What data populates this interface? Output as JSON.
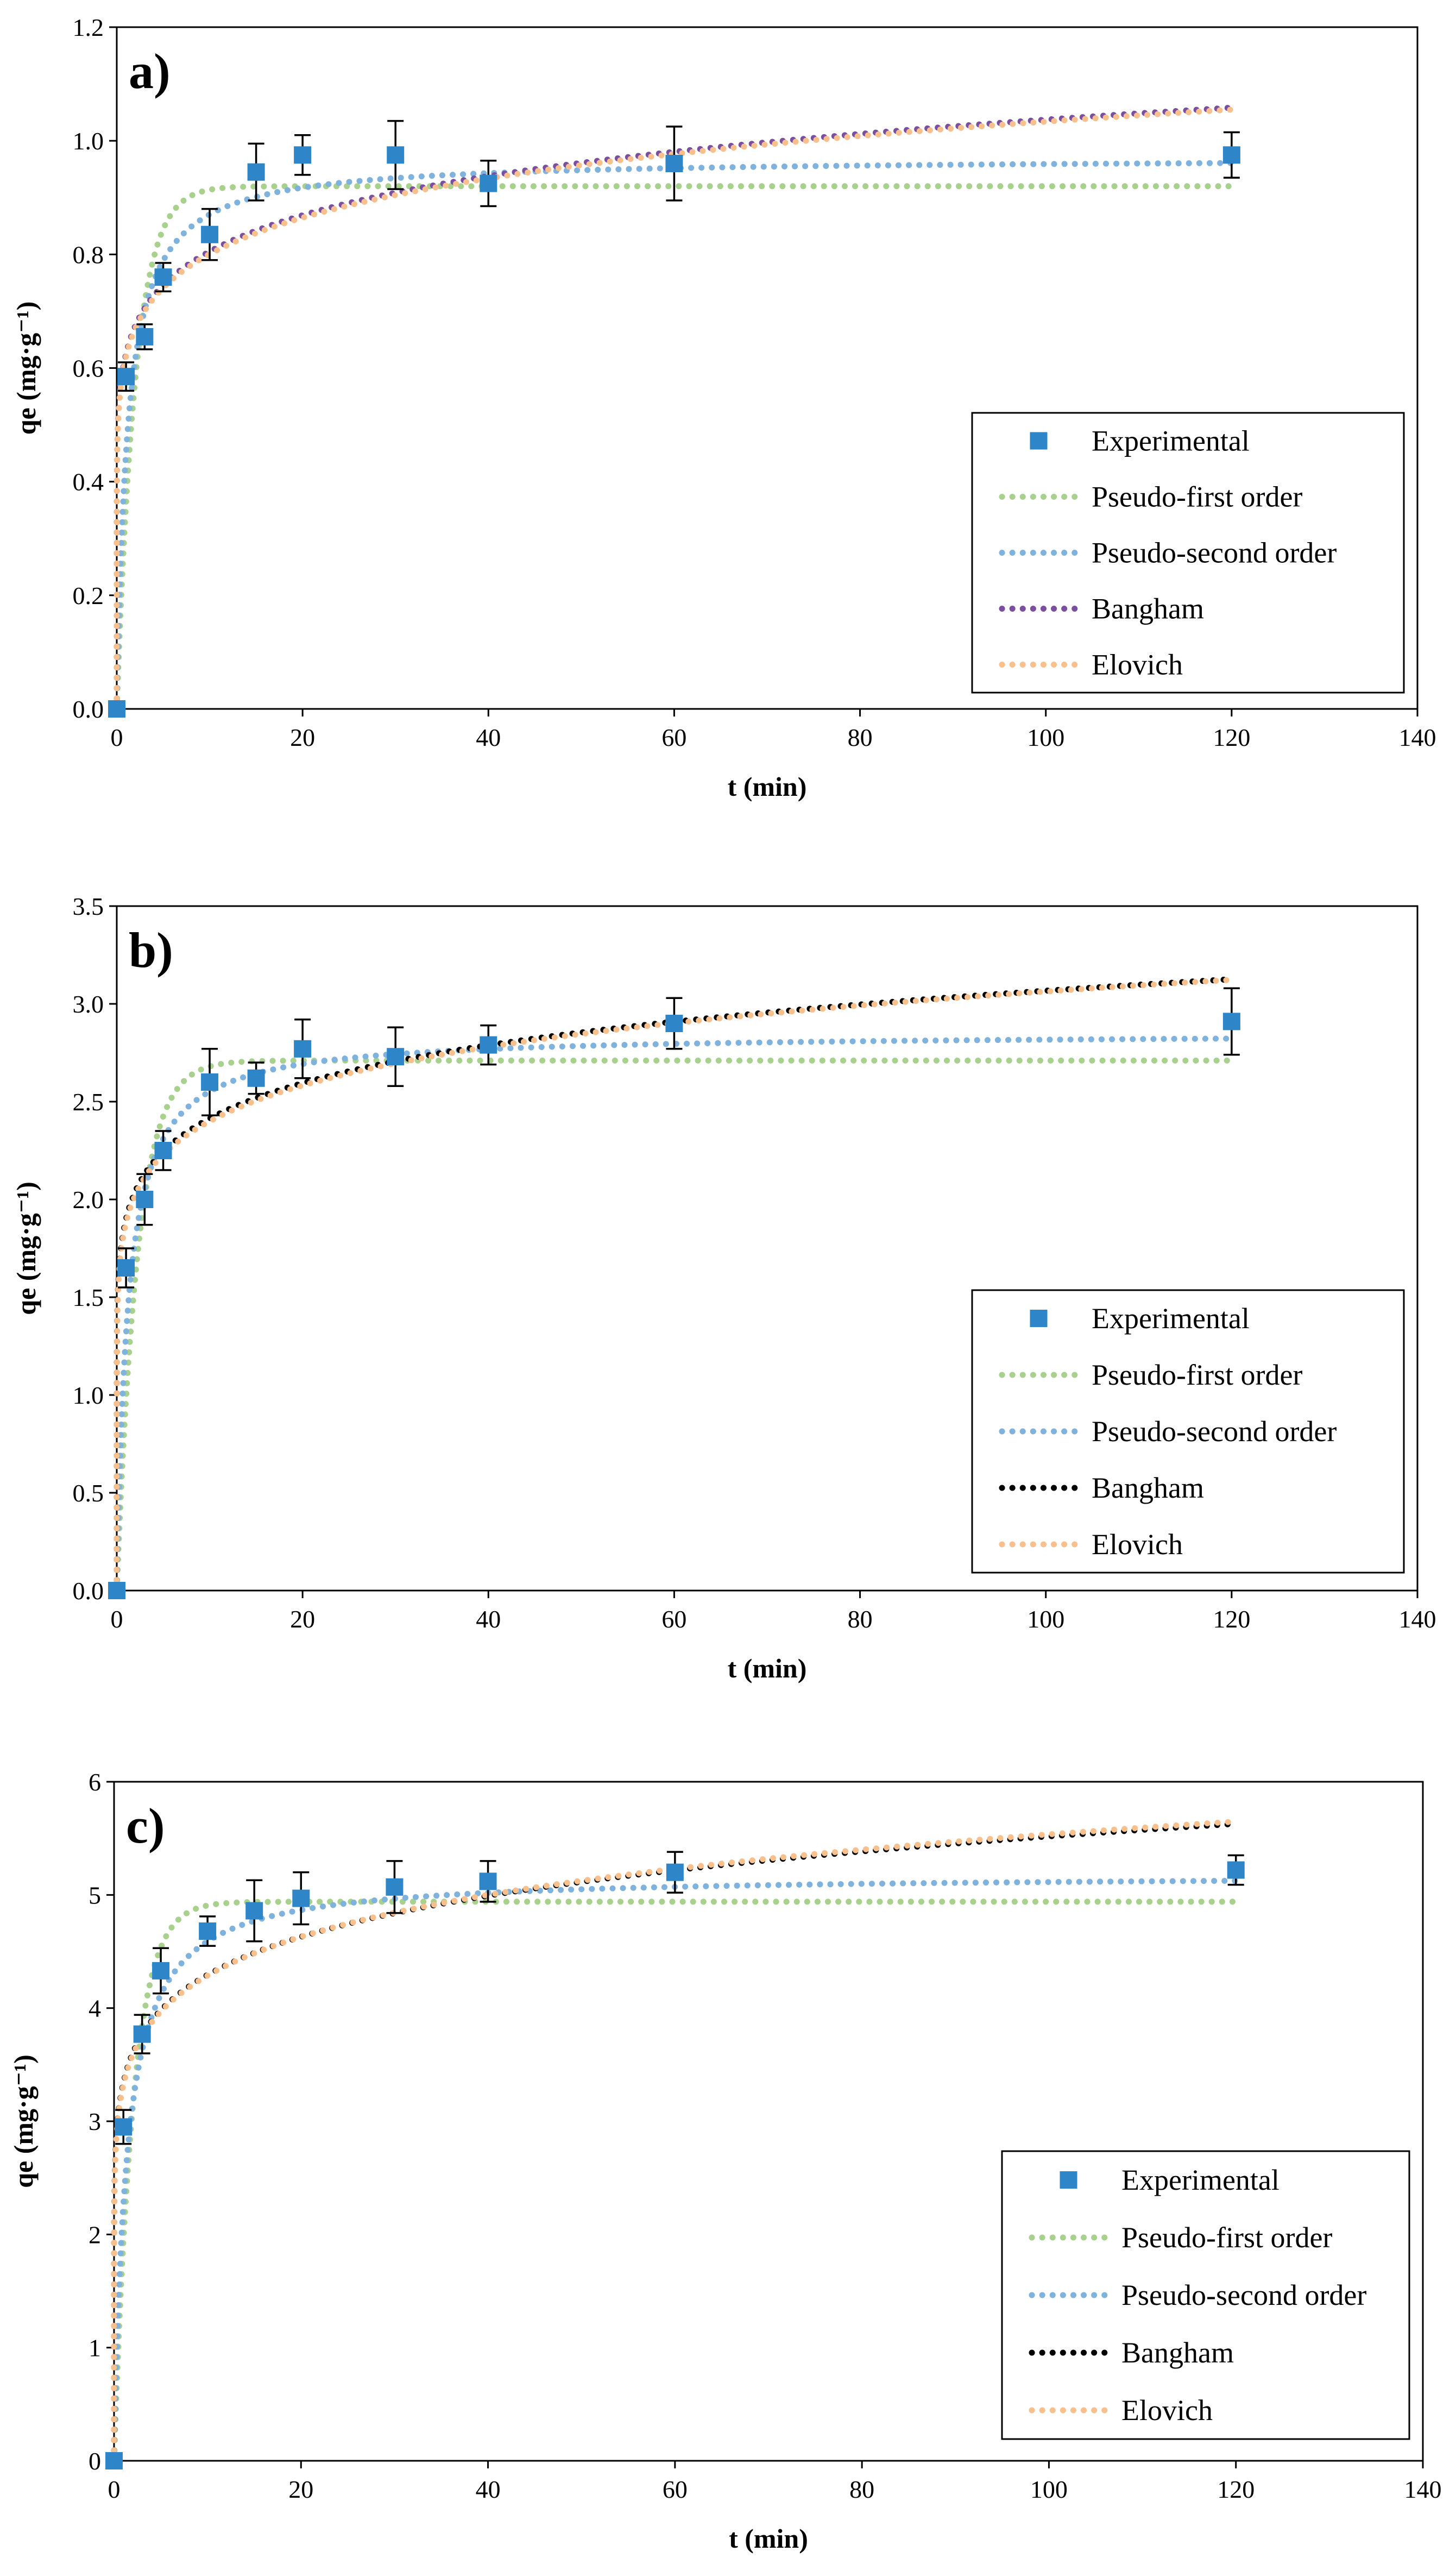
{
  "figure": "Adsorption kinetics panels",
  "chart_data": [
    {
      "panel": "a)",
      "type": "scatter",
      "xlabel": "t (min)",
      "ylabel": "qe (mg·g⁻¹)",
      "xlim": [
        0,
        140
      ],
      "ylim": [
        0,
        1.2
      ],
      "xticks": [
        0,
        20,
        40,
        60,
        80,
        100,
        120,
        140
      ],
      "yticks": [
        0.0,
        0.2,
        0.4,
        0.6,
        0.8,
        1.0,
        1.2
      ],
      "ytick_labels": [
        "0.0",
        "0.2",
        "0.4",
        "0.6",
        "0.8",
        "1.0",
        "1.2"
      ],
      "experimental": {
        "name": "Experimental",
        "x": [
          0,
          1,
          3,
          5,
          10,
          15,
          20,
          30,
          40,
          60,
          120
        ],
        "y": [
          0,
          0.585,
          0.655,
          0.76,
          0.835,
          0.945,
          0.975,
          0.975,
          0.925,
          0.96,
          0.975
        ],
        "err": [
          0,
          0.025,
          0.022,
          0.025,
          0.045,
          0.05,
          0.035,
          0.06,
          0.04,
          0.065,
          0.04
        ]
      },
      "fits": [
        {
          "name": "Pseudo-first order",
          "model": "pfo",
          "color": "#a9d18e",
          "qe": 0.92,
          "k": 0.5
        },
        {
          "name": "Pseudo-second order",
          "model": "pso",
          "color": "#7fb2dc",
          "qe": 0.97,
          "k": 0.9
        },
        {
          "name": "Bangham",
          "model": "power",
          "color": "#7b4fa0",
          "a": 0.625,
          "b": 0.11
        },
        {
          "name": "Elovich",
          "model": "power",
          "color": "#f8c08c",
          "a": 0.62,
          "b": 0.111
        }
      ]
    },
    {
      "panel": "b)",
      "type": "scatter",
      "xlabel": "t (min)",
      "ylabel": "qe (mg·g⁻¹)",
      "xlim": [
        0,
        140
      ],
      "ylim": [
        0,
        3.5
      ],
      "xticks": [
        0,
        20,
        40,
        60,
        80,
        100,
        120,
        140
      ],
      "yticks": [
        0.0,
        0.5,
        1.0,
        1.5,
        2.0,
        2.5,
        3.0,
        3.5
      ],
      "ytick_labels": [
        "0.0",
        "0.5",
        "1.0",
        "1.5",
        "2.0",
        "2.5",
        "3.0",
        "3.5"
      ],
      "experimental": {
        "name": "Experimental",
        "x": [
          0,
          1,
          3,
          5,
          10,
          15,
          20,
          30,
          40,
          60,
          120
        ],
        "y": [
          0,
          1.65,
          2.0,
          2.25,
          2.6,
          2.62,
          2.77,
          2.73,
          2.79,
          2.9,
          2.91
        ],
        "err": [
          0,
          0.1,
          0.13,
          0.1,
          0.17,
          0.08,
          0.15,
          0.15,
          0.1,
          0.13,
          0.17
        ]
      },
      "fits": [
        {
          "name": "Pseudo-first order",
          "model": "pfo",
          "color": "#a9d18e",
          "qe": 2.71,
          "k": 0.45
        },
        {
          "name": "Pseudo-second order",
          "model": "pso",
          "color": "#7fb2dc",
          "qe": 2.85,
          "k": 0.3
        },
        {
          "name": "Bangham",
          "model": "power",
          "color": "#000000",
          "a": 1.9,
          "b": 0.104
        },
        {
          "name": "Elovich",
          "model": "power",
          "color": "#f8c08c",
          "a": 1.88,
          "b": 0.106
        }
      ]
    },
    {
      "panel": "c)",
      "type": "scatter",
      "xlabel": "t (min)",
      "ylabel": "qe (mg·g⁻¹)",
      "xlim": [
        0,
        140
      ],
      "ylim": [
        0,
        6
      ],
      "xticks": [
        0,
        20,
        40,
        60,
        80,
        100,
        120,
        140
      ],
      "yticks": [
        0,
        1,
        2,
        3,
        4,
        5,
        6
      ],
      "ytick_labels": [
        "0",
        "1",
        "2",
        "3",
        "4",
        "5",
        "6"
      ],
      "experimental": {
        "name": "Experimental",
        "x": [
          0,
          1,
          3,
          5,
          10,
          15,
          20,
          30,
          40,
          60,
          120
        ],
        "y": [
          0,
          2.95,
          3.77,
          4.33,
          4.68,
          4.86,
          4.97,
          5.07,
          5.12,
          5.2,
          5.22
        ],
        "err": [
          0,
          0.15,
          0.17,
          0.2,
          0.13,
          0.27,
          0.23,
          0.23,
          0.18,
          0.18,
          0.13
        ]
      },
      "fits": [
        {
          "name": "Pseudo-first order",
          "model": "pfo",
          "color": "#a9d18e",
          "qe": 4.94,
          "k": 0.5
        },
        {
          "name": "Pseudo-second order",
          "model": "pso",
          "color": "#7fb2dc",
          "qe": 5.18,
          "k": 0.15
        },
        {
          "name": "Bangham",
          "model": "power",
          "color": "#000000",
          "a": 3.34,
          "b": 0.109
        },
        {
          "name": "Elovich",
          "model": "power",
          "color": "#f8c08c",
          "a": 3.32,
          "b": 0.111
        }
      ]
    }
  ],
  "marker_color": "#2e86c8"
}
